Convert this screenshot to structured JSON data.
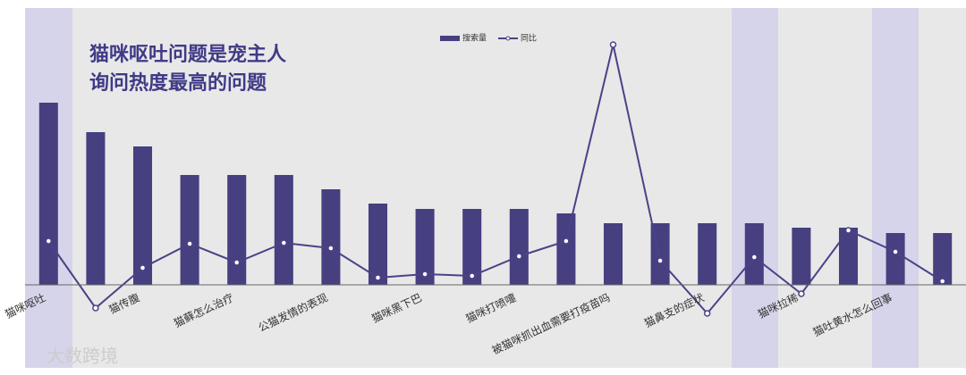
{
  "chart_data": {
    "type": "bar",
    "title": [
      "猫咪呕吐问题是宠主人",
      "询问热度最高的问题"
    ],
    "watermark": "大数跨境",
    "categories": [
      "猫咪呕吐",
      null,
      "猫传腹",
      null,
      "猫藓怎么治疗",
      null,
      "公猫发情的表现",
      null,
      "猫咪黑下巴",
      null,
      "猫咪打喷嚏",
      null,
      "被猫咪抓出血需要打疫苗吗",
      null,
      "猫鼻支的症状",
      null,
      "猫咪拉稀",
      null,
      "猫吐黄水怎么回事",
      null
    ],
    "series": [
      {
        "name": "搜索量",
        "type": "bar",
        "color": "#463f80",
        "values": [
          204,
          171,
          155,
          123,
          123,
          123,
          107,
          91,
          85,
          85,
          85,
          80,
          69,
          69,
          69,
          69,
          64,
          64,
          58,
          58
        ]
      },
      {
        "name": "同比",
        "type": "line",
        "axis": "y2",
        "color": "#4a4287",
        "values": [
          49,
          -26,
          19,
          46,
          25,
          47,
          41,
          8,
          12,
          10,
          32,
          49,
          269,
          27,
          -32,
          31,
          -10,
          61,
          37,
          4
        ]
      }
    ],
    "ylim": [
      -100,
      310
    ],
    "y2lim": [
      -100,
      310
    ]
  }
}
